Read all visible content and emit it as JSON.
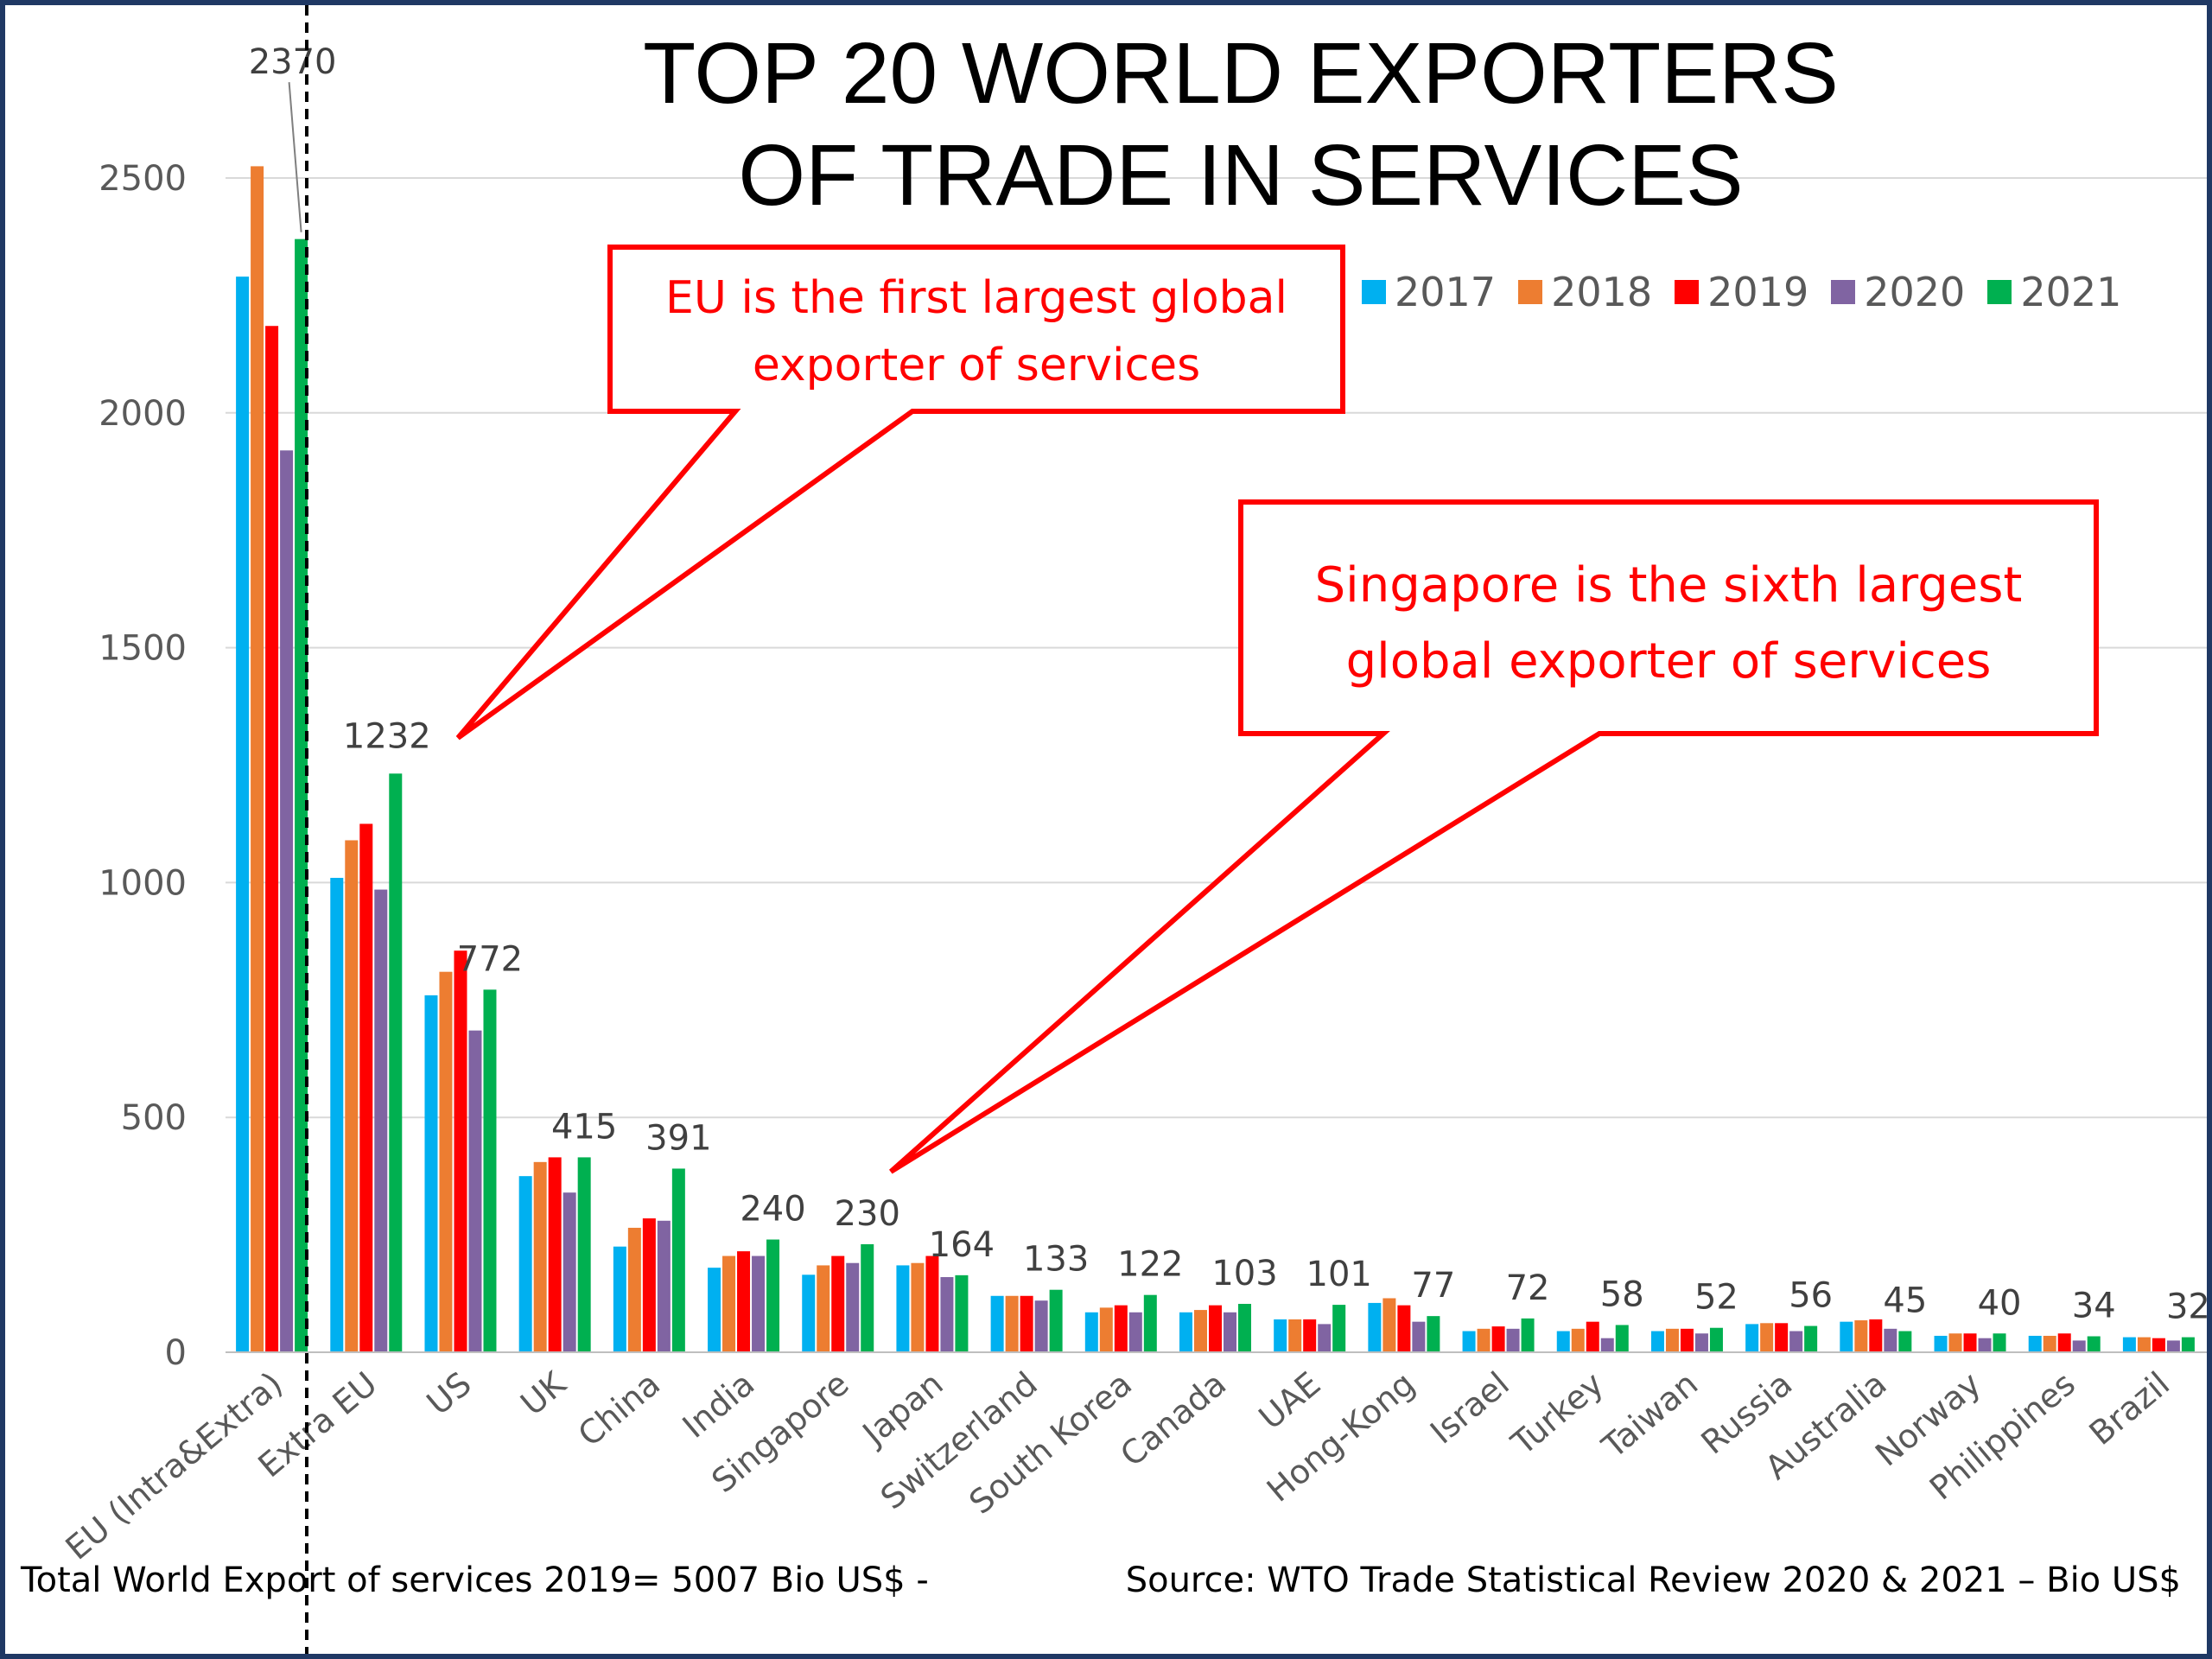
{
  "title_line1": "TOP 20 WORLD EXPORTERS",
  "title_line2": "OF TRADE IN SERVICES",
  "callout_eu_line1": "EU is the first largest global",
  "callout_eu_line2": "exporter of services",
  "callout_sg_line1": "Singapore is the sixth largest",
  "callout_sg_line2": "global exporter of services",
  "footer_left": "Total World Export of services 2019= 5007 Bio US$ -",
  "footer_right": "Source: WTO Trade Statistical Review 2020 & 2021 – Bio US$",
  "colors": {
    "2017": "#00b0f0",
    "2018": "#ed7d31",
    "2019": "#ff0000",
    "2020": "#8064a2",
    "2021": "#00b050",
    "callout": "#ff0000",
    "frame": "#1f3864"
  },
  "chart_data": {
    "type": "bar",
    "title": "TOP 20 WORLD EXPORTERS OF TRADE IN SERVICES",
    "categories": [
      "EU (Intra&Extra)",
      "Extra EU",
      "US",
      "UK",
      "China",
      "India",
      "Singapore",
      "Japan",
      "Switzerland",
      "South Korea",
      "Canada",
      "UAE",
      "Hong-Kong",
      "Israel",
      "Turkey",
      "Taiwan",
      "Russia",
      "Australia",
      "Norway",
      "Philippines",
      "Brazil"
    ],
    "series": [
      {
        "name": "2017",
        "values": [
          2290,
          1010,
          760,
          375,
          225,
          180,
          165,
          185,
          120,
          85,
          85,
          70,
          105,
          45,
          45,
          45,
          60,
          65,
          35,
          35,
          32
        ]
      },
      {
        "name": "2018",
        "values": [
          2525,
          1090,
          810,
          405,
          265,
          205,
          185,
          190,
          120,
          95,
          90,
          70,
          115,
          50,
          50,
          50,
          62,
          68,
          40,
          35,
          32
        ]
      },
      {
        "name": "2019",
        "values": [
          2185,
          1125,
          855,
          415,
          285,
          215,
          205,
          205,
          120,
          100,
          100,
          70,
          100,
          55,
          65,
          50,
          62,
          70,
          40,
          40,
          30
        ]
      },
      {
        "name": "2020",
        "values": [
          1920,
          985,
          685,
          340,
          280,
          205,
          190,
          160,
          110,
          85,
          85,
          60,
          65,
          50,
          30,
          40,
          45,
          50,
          30,
          25,
          25
        ]
      },
      {
        "name": "2021",
        "values": [
          2370,
          1232,
          772,
          415,
          391,
          240,
          230,
          164,
          133,
          122,
          103,
          101,
          77,
          72,
          58,
          52,
          56,
          45,
          40,
          34,
          32
        ]
      }
    ],
    "data_labels": [
      "2370",
      "1232",
      "772",
      "415",
      "391",
      "240",
      "230",
      "164",
      "133",
      "122",
      "103",
      "101",
      "77",
      "72",
      "58",
      "52",
      "56",
      "45",
      "40",
      "34",
      "32"
    ],
    "yticks": [
      "0",
      "500",
      "1000",
      "1500",
      "2000",
      "2500"
    ],
    "ylim": [
      0,
      2800
    ],
    "grid": true,
    "legend": "top-right"
  }
}
